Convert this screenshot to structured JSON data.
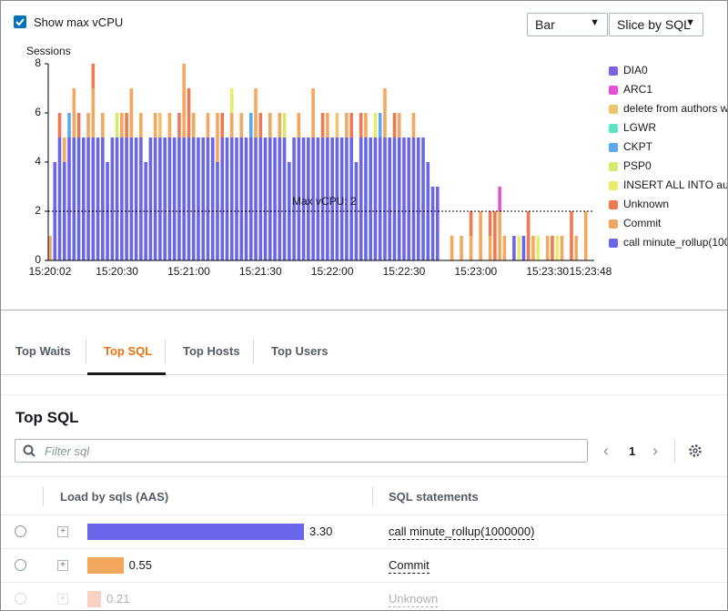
{
  "controls": {
    "show_max_vcpu": "Show max vCPU",
    "checked": true,
    "chart_type": "Bar",
    "slice_by": "Slice by SQL"
  },
  "chart_data": {
    "type": "stacked-bar",
    "y_label": "Sessions",
    "ylim": [
      0,
      8
    ],
    "yticks": [
      0,
      2,
      4,
      6,
      8
    ],
    "annotation": {
      "label": "Max vCPU: 2",
      "value": 2
    },
    "categories": [
      "15:20:02",
      null,
      null,
      null,
      null,
      null,
      null,
      null,
      null,
      null,
      null,
      null,
      null,
      null,
      "15:20:30",
      null,
      null,
      null,
      null,
      null,
      null,
      null,
      null,
      null,
      null,
      null,
      null,
      null,
      null,
      "15:21:00",
      null,
      null,
      null,
      null,
      null,
      null,
      null,
      null,
      null,
      null,
      null,
      null,
      null,
      null,
      "15:21:30",
      null,
      null,
      null,
      null,
      null,
      null,
      null,
      null,
      null,
      null,
      null,
      null,
      null,
      null,
      "15:22:00",
      null,
      null,
      null,
      null,
      null,
      null,
      null,
      null,
      null,
      null,
      null,
      null,
      null,
      null,
      "15:22:30",
      null,
      null,
      null,
      null,
      null,
      null,
      null,
      null,
      null,
      null,
      null,
      null,
      null,
      null,
      "15:23:00",
      null,
      null,
      null,
      null,
      null,
      null,
      null,
      null,
      null,
      null,
      null,
      null,
      null,
      null,
      "15:23:30",
      null,
      null,
      null,
      null,
      null,
      null,
      null,
      null,
      "15:23:48"
    ],
    "series": [
      {
        "name": "DIA0",
        "color": "#7b5fe6",
        "values": [
          0,
          0,
          0,
          0,
          0,
          0,
          0,
          0,
          0,
          0,
          0,
          0,
          0,
          0,
          0,
          0,
          0,
          0,
          0,
          0,
          0,
          0,
          0,
          0,
          0,
          0,
          0,
          0,
          0,
          0,
          0,
          0,
          0,
          0,
          0,
          0,
          0,
          0,
          0,
          0,
          0,
          0,
          0,
          0,
          0,
          0,
          0,
          0,
          0,
          0,
          0,
          0,
          0,
          0,
          0,
          0,
          0,
          0,
          0,
          0,
          0,
          0,
          0,
          0,
          0,
          0,
          0,
          0,
          0,
          0,
          0,
          0,
          0,
          0,
          0,
          0,
          0,
          0,
          0,
          0,
          0,
          0,
          0,
          0,
          0,
          0,
          0,
          0,
          0,
          0,
          0,
          0,
          0,
          0,
          0,
          0,
          0,
          0,
          0,
          0,
          0,
          0,
          0,
          0,
          0,
          0,
          0,
          0,
          0,
          0,
          0,
          0,
          0,
          0
        ]
      },
      {
        "name": "ARC1",
        "color": "#e64fd8",
        "values": [
          0,
          0,
          0,
          0,
          0,
          0,
          0,
          0,
          0,
          0,
          0,
          0,
          0,
          0,
          0,
          0,
          0,
          0,
          0,
          0,
          0,
          0,
          0,
          0,
          0,
          0,
          0,
          0,
          0,
          0,
          0,
          0,
          0,
          0,
          0,
          0,
          0,
          0,
          0,
          0,
          0,
          0,
          0,
          0,
          0,
          0,
          0,
          0,
          0,
          0,
          0,
          0,
          0,
          0,
          0,
          0,
          0,
          0,
          0,
          0,
          0,
          0,
          0,
          0,
          0,
          0,
          0,
          0,
          0,
          0,
          0,
          0,
          0,
          0,
          0,
          0,
          0,
          0,
          0,
          0,
          0,
          0,
          0,
          0,
          0,
          0,
          0,
          0,
          0,
          0,
          0,
          0,
          0,
          0,
          1,
          0,
          0,
          0,
          0,
          0,
          0,
          0,
          0,
          0,
          0,
          0,
          0,
          0,
          0,
          0,
          0,
          0,
          0,
          0
        ]
      },
      {
        "name": "delete from authors w",
        "color": "#f0c46a",
        "values": [
          0,
          0,
          0,
          0,
          0,
          0,
          0,
          0,
          0,
          0,
          0,
          0,
          0,
          0,
          0,
          0,
          0,
          0,
          0,
          0,
          0,
          0,
          0,
          1,
          0,
          0,
          0,
          0,
          0,
          0,
          0,
          0,
          0,
          0,
          0,
          0,
          0,
          0,
          0,
          0,
          0,
          0,
          0,
          0,
          0,
          0,
          0,
          0,
          0,
          0,
          0,
          0,
          0,
          0,
          0,
          0,
          0,
          0,
          0,
          0,
          1,
          0,
          0,
          0,
          0,
          0,
          0,
          0,
          0,
          0,
          0,
          0,
          0,
          0,
          0,
          0,
          0,
          0,
          0,
          0,
          0,
          0,
          0,
          0,
          0,
          0,
          0,
          0,
          0,
          0,
          0,
          0,
          0,
          0,
          0,
          0,
          0,
          0,
          0,
          0,
          0,
          0,
          0,
          0,
          0,
          0,
          0,
          0,
          0,
          0,
          0,
          0,
          0,
          0
        ]
      },
      {
        "name": "LGWR",
        "color": "#5be3c3",
        "values": [
          0,
          0,
          0,
          0,
          0,
          0,
          0,
          0,
          0,
          0,
          0,
          0,
          0,
          0,
          0,
          0,
          0,
          0,
          0,
          0,
          0,
          0,
          0,
          0,
          0,
          0,
          0,
          0,
          0,
          0,
          0,
          0,
          0,
          0,
          0,
          0,
          0,
          0,
          0,
          0,
          0,
          0,
          0,
          0,
          0,
          0,
          0,
          0,
          0,
          0,
          0,
          0,
          0,
          0,
          0,
          0,
          0,
          0,
          0,
          0,
          0,
          0,
          0,
          0,
          0,
          0,
          0,
          0,
          0,
          0,
          0,
          0,
          0,
          0,
          0,
          0,
          0,
          0,
          0,
          0,
          0,
          0,
          0,
          0,
          0,
          0,
          0,
          0,
          0,
          0,
          0,
          0,
          0,
          0,
          0,
          0,
          0,
          0,
          0,
          0,
          0,
          0,
          0,
          0,
          0,
          0,
          0,
          0,
          0,
          0,
          0,
          0,
          0,
          0
        ]
      },
      {
        "name": "CKPT",
        "color": "#5aa9f0",
        "values": [
          0,
          0,
          0,
          0,
          1,
          0,
          0,
          0,
          0,
          0,
          0,
          0,
          0,
          0,
          0,
          0,
          0,
          0,
          0,
          0,
          0,
          0,
          0,
          0,
          0,
          0,
          0,
          0,
          0,
          0,
          0,
          0,
          0,
          0,
          0,
          0,
          0,
          0,
          0,
          0,
          0,
          0,
          1,
          0,
          0,
          0,
          0,
          0,
          0,
          0,
          0,
          0,
          0,
          0,
          0,
          0,
          0,
          0,
          0,
          0,
          0,
          0,
          0,
          0,
          0,
          0,
          0,
          0,
          0,
          1,
          0,
          0,
          0,
          0,
          0,
          0,
          0,
          0,
          0,
          0,
          0,
          0,
          0,
          0,
          0,
          0,
          0,
          0,
          0,
          0,
          0,
          0,
          0,
          0,
          0,
          0,
          0,
          0,
          0,
          0,
          0,
          0,
          0,
          0,
          0,
          0,
          0,
          0,
          0,
          0,
          0,
          0,
          0,
          0
        ]
      },
      {
        "name": "PSP0",
        "color": "#d7e86b",
        "values": [
          0,
          0,
          0,
          0,
          0,
          0,
          0,
          0,
          0,
          0,
          0,
          0,
          0,
          0,
          1,
          0,
          0,
          0,
          0,
          0,
          0,
          0,
          0,
          0,
          0,
          0,
          0,
          0,
          0,
          0,
          0,
          0,
          0,
          0,
          0,
          0,
          0,
          0,
          0,
          0,
          0,
          0,
          0,
          0,
          0,
          0,
          0,
          0,
          0,
          1,
          0,
          0,
          0,
          0,
          0,
          0,
          0,
          0,
          0,
          0,
          0,
          0,
          0,
          0,
          0,
          0,
          0,
          0,
          0,
          0,
          0,
          0,
          0,
          0,
          0,
          0,
          0,
          0,
          0,
          0,
          0,
          0,
          0,
          0,
          0,
          0,
          0,
          0,
          0,
          0,
          0,
          0,
          0,
          0,
          0,
          0,
          0,
          0,
          0,
          0,
          0,
          0,
          0,
          0,
          0,
          0,
          0,
          0,
          0,
          0,
          0,
          0,
          0,
          0
        ]
      },
      {
        "name": "INSERT ALL   INTO au",
        "color": "#e9ec6a",
        "values": [
          0,
          0,
          0,
          0,
          0,
          0,
          0,
          0,
          0,
          0,
          0,
          0,
          0,
          0,
          0,
          0,
          0,
          0,
          0,
          0,
          0,
          0,
          0,
          0,
          0,
          0,
          0,
          0,
          0,
          0,
          0,
          0,
          0,
          0,
          0,
          0,
          0,
          0,
          1,
          0,
          0,
          0,
          0,
          0,
          0,
          0,
          0,
          0,
          0,
          0,
          0,
          0,
          0,
          0,
          0,
          0,
          0,
          0,
          0,
          0,
          0,
          0,
          0,
          0,
          0,
          0,
          0,
          0,
          1,
          0,
          0,
          0,
          0,
          0,
          0,
          0,
          0,
          0,
          0,
          0,
          0,
          0,
          0,
          0,
          0,
          0,
          0,
          0,
          0,
          0,
          0,
          0,
          0,
          0,
          0,
          0,
          0,
          0,
          1,
          0,
          0,
          0,
          1,
          0,
          0,
          0,
          1,
          0,
          0,
          0,
          0,
          0,
          0,
          0
        ]
      },
      {
        "name": "Unknown",
        "color": "#ef7a52",
        "values": [
          0,
          0,
          1,
          0,
          0,
          0,
          1,
          0,
          0,
          1,
          0,
          0,
          0,
          0,
          0,
          0,
          1,
          0,
          0,
          0,
          0,
          0,
          0,
          0,
          0,
          0,
          0,
          1,
          0,
          2,
          0,
          0,
          0,
          0,
          0,
          0,
          1,
          0,
          0,
          0,
          0,
          0,
          0,
          0,
          1,
          0,
          0,
          0,
          0,
          0,
          0,
          0,
          0,
          0,
          0,
          0,
          0,
          1,
          0,
          0,
          0,
          0,
          0,
          1,
          0,
          1,
          0,
          0,
          0,
          0,
          0,
          0,
          1,
          0,
          0,
          0,
          0,
          0,
          0,
          0,
          0,
          0,
          0,
          0,
          0,
          0,
          0,
          0,
          1,
          0,
          0,
          0,
          1,
          2,
          0,
          0,
          0,
          0,
          0,
          0,
          2,
          0,
          0,
          0,
          0,
          1,
          0,
          0,
          0,
          2,
          0,
          0,
          0,
          0
        ]
      },
      {
        "name": "Commit",
        "color": "#f4a75e",
        "values": [
          1,
          0,
          0,
          1,
          0,
          2,
          0,
          0,
          1,
          2,
          0,
          1,
          0,
          0,
          0,
          1,
          0,
          2,
          0,
          1,
          0,
          0,
          1,
          0,
          0,
          1,
          0,
          0,
          3,
          0,
          1,
          0,
          0,
          1,
          0,
          2,
          0,
          0,
          1,
          0,
          1,
          0,
          0,
          2,
          0,
          0,
          1,
          0,
          1,
          0,
          0,
          0,
          1,
          0,
          0,
          2,
          0,
          0,
          1,
          0,
          0,
          0,
          1,
          0,
          0,
          0,
          1,
          0,
          0,
          0,
          2,
          0,
          0,
          1,
          0,
          0,
          1,
          0,
          0,
          0,
          0,
          0,
          0,
          0,
          1,
          0,
          1,
          0,
          1,
          0,
          2,
          0,
          1,
          0,
          2,
          1,
          0,
          0,
          0,
          0,
          0,
          1,
          0,
          0,
          1,
          0,
          0,
          1,
          0,
          0,
          1,
          0,
          2,
          0
        ]
      },
      {
        "name": "call minute_rollup(100",
        "color": "#6a66ea",
        "values": [
          0,
          4,
          5,
          4,
          5,
          5,
          5,
          5,
          5,
          5,
          5,
          5,
          4,
          5,
          5,
          5,
          5,
          5,
          5,
          5,
          4,
          5,
          5,
          5,
          5,
          5,
          5,
          5,
          5,
          5,
          5,
          5,
          5,
          5,
          5,
          4,
          5,
          5,
          5,
          5,
          5,
          5,
          5,
          5,
          5,
          5,
          5,
          5,
          5,
          5,
          4,
          5,
          5,
          5,
          5,
          5,
          5,
          5,
          5,
          5,
          5,
          5,
          5,
          5,
          4,
          5,
          5,
          5,
          5,
          5,
          5,
          5,
          5,
          5,
          5,
          5,
          5,
          5,
          5,
          4,
          3,
          3,
          0,
          0,
          0,
          0,
          0,
          0,
          0,
          0,
          0,
          0,
          0,
          0,
          0,
          0,
          0,
          1,
          0,
          1,
          0,
          0,
          0,
          0,
          0,
          0,
          0,
          0,
          0,
          0,
          0,
          0,
          0,
          0
        ]
      }
    ]
  },
  "tabs": {
    "items": [
      "Top Waits",
      "Top SQL",
      "Top Hosts",
      "Top Users"
    ],
    "active": 1
  },
  "top_sql": {
    "title": "Top SQL",
    "filter_placeholder": "Filter sql",
    "page": 1,
    "headers": [
      "Load by sqls (AAS)",
      "SQL statements"
    ],
    "xlim": [
      0,
      3.3
    ],
    "rows": [
      {
        "value": 3.3,
        "value_label": "3.30",
        "color": "#6a66ea",
        "sql": "call minute_rollup(1000000)"
      },
      {
        "value": 0.55,
        "value_label": "0.55",
        "color": "#f4a75e",
        "sql": "Commit"
      },
      {
        "value": 0.21,
        "value_label": "0.21",
        "color": "#ef7a52",
        "sql": "Unknown"
      }
    ]
  }
}
